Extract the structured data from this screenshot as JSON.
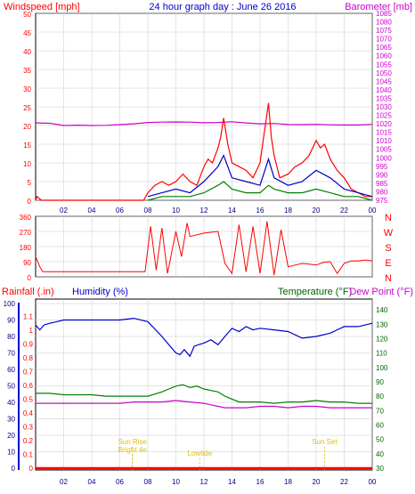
{
  "colors": {
    "red": "#ff0000",
    "magenta": "#cc00cc",
    "blue": "#0000cc",
    "green": "#008000",
    "darkgreen": "#006400",
    "navy": "#000080",
    "yellow": "#e0c000",
    "grid": "#c8c8c8",
    "frame": "#000000"
  },
  "chart_data": [
    {
      "type": "line",
      "title": "24 hour graph day : June 26 2016",
      "ylabel_left": "Windspeed [mph]",
      "ylabel_right": "Barometer [mb]",
      "ylim_left": [
        0,
        50
      ],
      "yticks_left": [
        "0",
        "5",
        "10",
        "15",
        "20",
        "25",
        "30",
        "35",
        "40",
        "45",
        "50"
      ],
      "ylim_right": [
        975,
        1085
      ],
      "yticks_right": [
        "975",
        "980",
        "985",
        "990",
        "995",
        "1000",
        "1005",
        "1010",
        "1015",
        "1020",
        "1025",
        "1030",
        "1035",
        "1040",
        "1045",
        "1050",
        "1055",
        "1060",
        "1065",
        "1070",
        "1075",
        "1080",
        "1085"
      ],
      "xticks": [
        "02",
        "04",
        "06",
        "08",
        "10",
        "12",
        "14",
        "16",
        "18",
        "20",
        "22",
        "00"
      ],
      "xlim_hours": [
        0,
        24
      ],
      "series": [
        {
          "key": "barometer",
          "axis": "right",
          "color": "#cc00cc",
          "x": [
            0,
            1,
            2,
            3,
            4,
            5,
            6,
            7,
            8,
            9,
            10,
            11,
            12,
            13,
            14,
            15,
            16,
            17,
            18,
            19,
            20,
            21,
            22,
            23,
            24
          ],
          "values": [
            1020.5,
            1020.3,
            1019.0,
            1019.2,
            1019.0,
            1019.1,
            1019.5,
            1020.0,
            1020.8,
            1021.0,
            1021.1,
            1021.0,
            1020.6,
            1020.8,
            1021.2,
            1020.5,
            1020.0,
            1020.2,
            1019.6,
            1019.5,
            1019.7,
            1019.4,
            1019.3,
            1019.3,
            1019.7
          ]
        },
        {
          "key": "gust",
          "axis": "left",
          "color": "#ff0000",
          "x": [
            0,
            0.1,
            0.4,
            1,
            2,
            3,
            4,
            5,
            6,
            7,
            7.7,
            8,
            8.5,
            9,
            9.5,
            10,
            10.5,
            11,
            11.5,
            12,
            12.3,
            12.6,
            13,
            13.2,
            13.4,
            13.7,
            14,
            14.5,
            15,
            15.5,
            16,
            16.3,
            16.6,
            16.8,
            17,
            17.4,
            18,
            18.5,
            19,
            19.5,
            20,
            20.3,
            20.6,
            21,
            21.5,
            22,
            22.5,
            23,
            23.5,
            24
          ],
          "values": [
            0,
            1,
            0,
            0,
            0,
            0,
            0,
            0,
            0,
            0,
            0,
            2,
            4,
            5,
            4,
            5,
            7,
            5,
            4,
            9,
            11,
            10,
            14,
            17,
            22,
            15,
            10,
            9,
            8,
            6,
            10,
            18,
            26,
            17,
            12,
            6,
            7,
            9,
            10,
            12,
            16,
            14,
            15,
            11,
            8,
            6,
            3,
            2,
            1,
            1
          ]
        },
        {
          "key": "average",
          "axis": "left",
          "color": "#0000cc",
          "x": [
            8,
            9,
            10,
            11,
            12,
            13,
            13.4,
            14,
            15,
            16,
            16.6,
            17,
            18,
            19,
            20,
            21,
            22,
            23,
            24
          ],
          "values": [
            1,
            2,
            3,
            2,
            5,
            9,
            12,
            6,
            5,
            4,
            11,
            6,
            4,
            5,
            8,
            6,
            3,
            2,
            1
          ]
        },
        {
          "key": "lull",
          "axis": "left",
          "color": "#008000",
          "x": [
            8,
            9,
            10,
            11,
            12,
            13,
            13.4,
            14,
            15,
            16,
            16.6,
            17,
            18,
            19,
            20,
            21,
            22,
            23,
            24
          ],
          "values": [
            0,
            1,
            1,
            1,
            2,
            4,
            5,
            3,
            2,
            2,
            4,
            3,
            2,
            2,
            3,
            2,
            1,
            1,
            0
          ]
        }
      ]
    },
    {
      "type": "scatter",
      "ylabels_left": [
        "360",
        "270",
        "180",
        "90",
        "0"
      ],
      "ylabels_right": [
        "N",
        "W",
        "S",
        "E",
        "N"
      ],
      "ylim": [
        0,
        360
      ],
      "xlim_hours": [
        0,
        24
      ],
      "series": [
        {
          "key": "direction",
          "color": "#ff0000",
          "x": [
            0,
            0.3,
            0.5,
            1,
            2,
            3,
            4,
            5,
            6,
            7,
            7.8,
            8.2,
            8.6,
            9,
            9.4,
            10,
            10.4,
            10.8,
            11,
            12,
            13,
            13.5,
            14,
            14.5,
            15,
            15.5,
            16,
            16.5,
            17,
            17.5,
            18,
            18.5,
            19,
            19.5,
            20,
            20.5,
            21,
            21.5,
            22,
            22.5,
            23,
            23.5,
            24
          ],
          "values": [
            120,
            60,
            30,
            30,
            30,
            30,
            30,
            30,
            30,
            30,
            30,
            300,
            40,
            290,
            20,
            270,
            120,
            320,
            240,
            260,
            270,
            80,
            20,
            310,
            30,
            300,
            20,
            330,
            10,
            280,
            60,
            70,
            80,
            75,
            70,
            85,
            90,
            20,
            80,
            95,
            95,
            100,
            95
          ]
        }
      ]
    },
    {
      "type": "line",
      "ylabel_left": "Rainfall (.in)",
      "ylabel_left2": "Humidity (%)",
      "ylabel_right": "Temperature (°F)",
      "ylabel_right2": "Dew Point (°F)",
      "yticks_rain": [
        "0",
        "0.1",
        "0.2",
        "0.3",
        "0.4",
        "0.5",
        "0.6",
        "0.7",
        "0.8",
        "0.9",
        "1",
        "1.1"
      ],
      "yticks_humidity": [
        "0",
        "10",
        "20",
        "30",
        "40",
        "50",
        "60",
        "70",
        "80",
        "90",
        "100"
      ],
      "yticks_temp": [
        "30",
        "40",
        "50",
        "60",
        "70",
        "80",
        "90",
        "100",
        "110",
        "120",
        "130",
        "140"
      ],
      "ylim_rain": [
        0,
        1.2
      ],
      "ylim_humidity": [
        0,
        100
      ],
      "ylim_temp": [
        30,
        145
      ],
      "xticks": [
        "02",
        "04",
        "06",
        "08",
        "10",
        "12",
        "14",
        "16",
        "18",
        "20",
        "22",
        "00"
      ],
      "xlim_hours": [
        0,
        24
      ],
      "annotations": [
        {
          "text": "Sun Rise",
          "hour": 6.9
        },
        {
          "text": "Bright 4e",
          "hour": 6.9
        },
        {
          "text": "Lowtide",
          "hour": 11.7
        },
        {
          "text": "Sun Set",
          "hour": 20.6
        }
      ],
      "series": [
        {
          "key": "humidity",
          "axis": "humidity",
          "color": "#0000cc",
          "x": [
            0,
            0.3,
            0.6,
            1,
            1.5,
            2,
            3,
            4,
            5,
            6,
            7,
            8,
            9,
            9.5,
            10,
            10.3,
            10.6,
            11,
            11.3,
            11.6,
            12,
            12.5,
            13,
            13.5,
            14,
            14.5,
            15,
            15.5,
            16,
            17,
            18,
            19,
            20,
            21,
            22,
            23,
            24
          ],
          "values": [
            87,
            84,
            87,
            88,
            89,
            90,
            90,
            90,
            90,
            90,
            91,
            89,
            80,
            75,
            70,
            69,
            72,
            68,
            74,
            75,
            76,
            78,
            75,
            80,
            85,
            83,
            86,
            84,
            85,
            84,
            83,
            79,
            80,
            82,
            86,
            86,
            88
          ]
        },
        {
          "key": "temperature",
          "axis": "temp",
          "color": "#008000",
          "x": [
            0,
            1,
            2,
            3,
            4,
            5,
            6,
            7,
            8,
            9,
            9.5,
            10,
            10.5,
            11,
            11.5,
            12,
            12.5,
            13,
            13.5,
            14,
            14.5,
            15,
            16,
            17,
            18,
            19,
            20,
            21,
            22,
            23,
            24
          ],
          "values": [
            82,
            82,
            81,
            81,
            81,
            80,
            80,
            80,
            80,
            83,
            85,
            87,
            88,
            86,
            87,
            85,
            84,
            83,
            80,
            78,
            76,
            76,
            76,
            75,
            76,
            76,
            77,
            76,
            76,
            75,
            75
          ]
        },
        {
          "key": "dewpoint",
          "axis": "temp",
          "color": "#cc00cc",
          "x": [
            0,
            1,
            2,
            3,
            4,
            5,
            6,
            7,
            8,
            9,
            10,
            11,
            12,
            12.5,
            13,
            13.5,
            14,
            15,
            16,
            17,
            18,
            19,
            20,
            21,
            22,
            23,
            24
          ],
          "values": [
            75,
            75,
            75,
            75,
            75,
            75,
            75,
            76,
            76,
            76,
            77,
            76,
            75,
            74,
            73,
            72,
            72,
            72,
            73,
            73,
            72,
            73,
            73,
            72,
            72,
            72,
            72
          ]
        },
        {
          "key": "rainfall",
          "axis": "rain",
          "color": "#ff0000",
          "x": [
            0,
            24
          ],
          "values": [
            0,
            0
          ]
        }
      ]
    }
  ]
}
